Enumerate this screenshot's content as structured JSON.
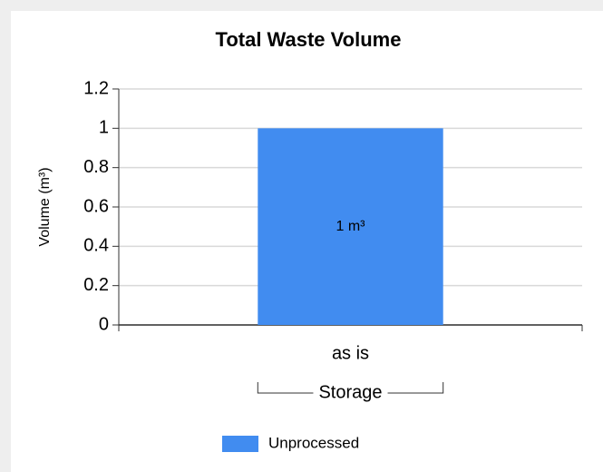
{
  "chart_data": {
    "type": "bar",
    "title": "Total Waste Volume",
    "ylabel": "Volume (m³)",
    "categories": [
      "as is"
    ],
    "group_label": "Storage",
    "series": [
      {
        "name": "Unprocessed",
        "color": "#418cf0",
        "values": [
          1
        ],
        "value_labels": [
          "1 m³"
        ]
      }
    ],
    "ylim": [
      0,
      1.2
    ],
    "yticks": [
      0,
      0.2,
      0.4,
      0.6,
      0.8,
      1,
      1.2
    ],
    "grid": true,
    "legend": "bottom"
  }
}
